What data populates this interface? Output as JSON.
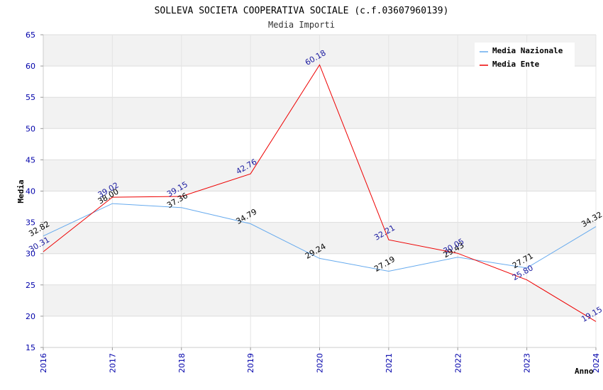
{
  "chart_data": {
    "type": "line",
    "title": "SOLLEVA SOCIETA COOPERATIVA SOCIALE (c.f.03607960139)",
    "subtitle": "Media Importi",
    "xlabel": "Anno",
    "ylabel": "Media",
    "ylim": [
      15,
      65
    ],
    "yticks": [
      15,
      20,
      25,
      30,
      35,
      40,
      45,
      50,
      55,
      60,
      65
    ],
    "categories": [
      "2016",
      "2017",
      "2018",
      "2019",
      "2020",
      "2021",
      "2022",
      "2023",
      "2024"
    ],
    "legend_position": "top-right",
    "series": [
      {
        "name": "Media Nazionale",
        "color": "#66aaee",
        "values": [
          32.82,
          38.0,
          37.36,
          34.79,
          29.24,
          27.19,
          29.43,
          27.71,
          34.32
        ],
        "labels": [
          "32.82",
          "38.00",
          "37.36",
          "34.79",
          "29.24",
          "27.19",
          "29.43",
          "27.71",
          "34.32"
        ]
      },
      {
        "name": "Media Ente",
        "color": "#ee0000",
        "values": [
          30.31,
          39.02,
          39.15,
          42.76,
          60.18,
          32.21,
          30.05,
          25.8,
          19.15
        ],
        "labels": [
          "30.31",
          "39.02",
          "39.15",
          "42.76",
          "60.18",
          "32.21",
          "30.05",
          "25.80",
          "19.15"
        ]
      }
    ]
  }
}
